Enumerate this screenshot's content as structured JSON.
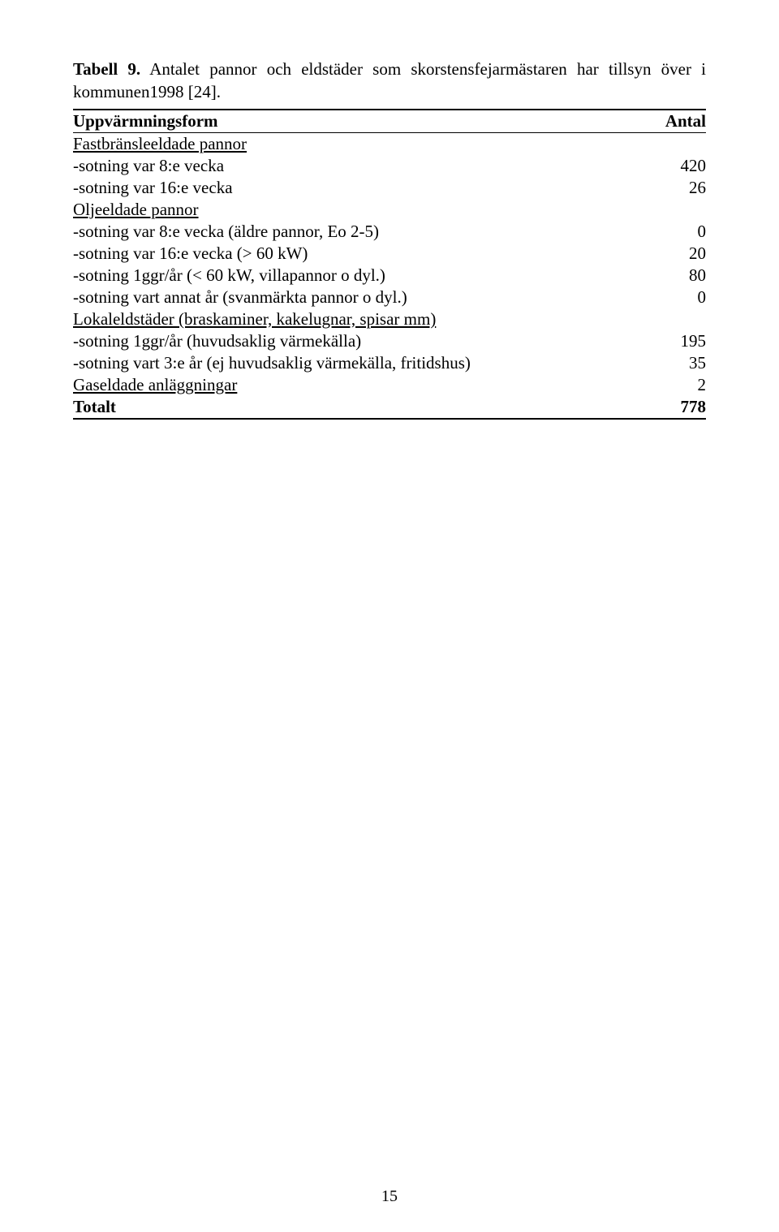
{
  "caption": {
    "label": "Tabell 9.",
    "text": " Antalet pannor och eldstäder som skorstensfejarmästaren har tillsyn över i kommunen1998 [24]."
  },
  "table": {
    "header": {
      "left": "Uppvärmningsform",
      "right": "Antal"
    },
    "rows": [
      {
        "label": "Fastbränsleeldade pannor",
        "value": "",
        "underline": true
      },
      {
        "label": "-sotning var 8:e vecka",
        "value": "420"
      },
      {
        "label": "-sotning var 16:e vecka",
        "value": "26"
      },
      {
        "label": "Oljeeldade pannor",
        "value": "",
        "underline": true
      },
      {
        "label": "-sotning var 8:e vecka (äldre pannor, Eo 2-5)",
        "value": "0"
      },
      {
        "label": "-sotning var 16:e vecka (> 60 kW)",
        "value": "20"
      },
      {
        "label": "-sotning 1ggr/år (< 60 kW, villapannor o dyl.)",
        "value": "80"
      },
      {
        "label": "-sotning vart annat år (svanmärkta pannor o dyl.)",
        "value": "0"
      },
      {
        "label": "Lokaleldstäder (braskaminer, kakelugnar, spisar mm)",
        "value": "",
        "underline": true
      },
      {
        "label": "-sotning 1ggr/år (huvudsaklig värmekälla)",
        "value": "195"
      },
      {
        "label": "-sotning vart 3:e år (ej huvudsaklig värmekälla, fritidshus)",
        "value": "35"
      },
      {
        "label": "Gaseldade anläggningar",
        "value": "2",
        "underline": true
      }
    ],
    "total": {
      "label": "Totalt",
      "value": "778"
    }
  },
  "page_number": "15"
}
